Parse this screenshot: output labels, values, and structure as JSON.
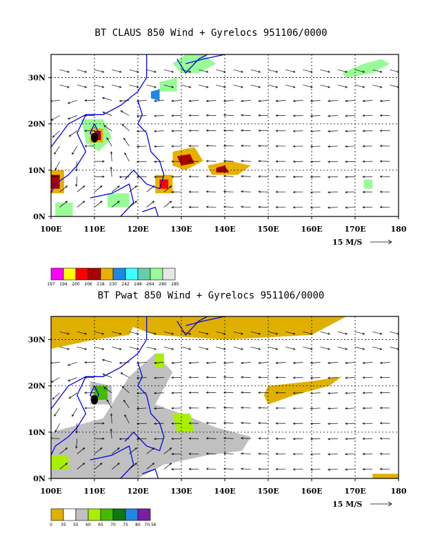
{
  "charts": [
    {
      "id": "top",
      "title": "BT CLAUS 850 Wind + Gyrelocs 951106/0000",
      "variable": "CLAUS brightness temperature",
      "x_ticks": [
        "100E",
        "110E",
        "120E",
        "130E",
        "140E",
        "150E",
        "160E",
        "170E",
        "180"
      ],
      "y_ticks": [
        "0N",
        "10N",
        "20N",
        "30N"
      ],
      "ref_vector_label": "15 M/S",
      "colorbar_labels": [
        "197",
        "194",
        "200",
        "206",
        "218",
        "230",
        "242",
        "248",
        "264",
        "280",
        "285"
      ],
      "colorbar_colors": [
        "#ff00ff",
        "#ffff00",
        "#ff0000",
        "#aa0000",
        "#e8b000",
        "#1e88e5",
        "#40ffff",
        "#66cdaa",
        "#98fb98",
        "#e6e6e6"
      ]
    },
    {
      "id": "bottom",
      "title": "BT Pwat 850 Wind + Gyrelocs 951106/0000",
      "variable": "precipitable water",
      "x_ticks": [
        "100E",
        "110E",
        "120E",
        "130E",
        "140E",
        "150E",
        "160E",
        "170E",
        "180"
      ],
      "y_ticks": [
        "0N",
        "10N",
        "20N",
        "30N"
      ],
      "ref_vector_label": "15 M/S",
      "colorbar_labels": [
        "0",
        "35",
        "55",
        "60",
        "65",
        "70",
        "75",
        "80",
        "70.56"
      ],
      "colorbar_colors": [
        "#e0b000",
        "#ffffff",
        "#c0c0c0",
        "#aaee00",
        "#44bb00",
        "#117711",
        "#1e88e5",
        "#7b1fa2"
      ]
    }
  ],
  "chart_data": [
    {
      "type": "heatmap",
      "title": "BT CLAUS 850 Wind + Gyrelocs 951106/0000",
      "x_range": [
        100,
        180
      ],
      "y_range": [
        0,
        35
      ],
      "x_ticks": [
        "100E",
        "110E",
        "120E",
        "130E",
        "140E",
        "150E",
        "160E",
        "170E",
        "180"
      ],
      "y_ticks": [
        "0N",
        "10N",
        "20N",
        "30N"
      ],
      "grid": true,
      "gyre_location": {
        "lon": 110,
        "lat": 17
      },
      "colorbar": [
        "197",
        "194",
        "200",
        "206",
        "218",
        "230",
        "242",
        "248",
        "264",
        "280",
        "285"
      ]
    },
    {
      "type": "heatmap",
      "title": "BT Pwat 850 Wind + Gyrelocs 951106/0000",
      "x_range": [
        100,
        180
      ],
      "y_range": [
        0,
        35
      ],
      "x_ticks": [
        "100E",
        "110E",
        "120E",
        "130E",
        "140E",
        "150E",
        "160E",
        "170E",
        "180"
      ],
      "y_ticks": [
        "0N",
        "10N",
        "20N",
        "30N"
      ],
      "grid": true,
      "gyre_location": {
        "lon": 110,
        "lat": 17
      },
      "colorbar": [
        "0",
        "35",
        "55",
        "60",
        "65",
        "70",
        "75",
        "80",
        "70.56"
      ]
    }
  ]
}
